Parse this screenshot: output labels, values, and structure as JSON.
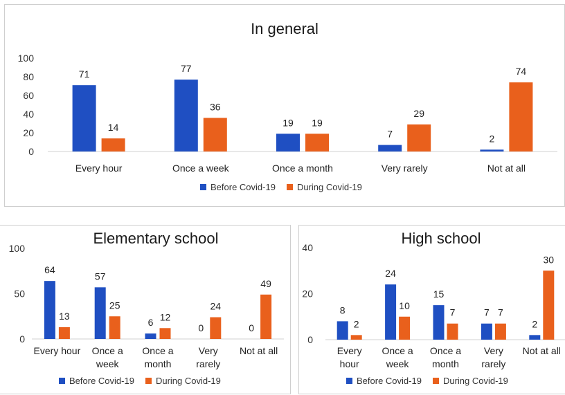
{
  "colors": {
    "before": "#1f4fc2",
    "during": "#e9601c",
    "axis": "#d0d0d0",
    "text": "#333333"
  },
  "chart_data": [
    {
      "type": "bar",
      "title": "In general",
      "categories": [
        "Every hour",
        "Once a week",
        "Once a month",
        "Very rarely",
        "Not at all"
      ],
      "series": [
        {
          "name": "Before Covid-19",
          "values": [
            71,
            77,
            19,
            7,
            2
          ]
        },
        {
          "name": "During Covid-19",
          "values": [
            14,
            36,
            19,
            29,
            74
          ]
        }
      ],
      "ylim": [
        0,
        100
      ],
      "yticks": [
        "0",
        "20",
        "40",
        "60",
        "80",
        "100"
      ],
      "legend": "bottom",
      "grid": false
    },
    {
      "type": "bar",
      "title": "Elementary school",
      "categories": [
        [
          "Every hour"
        ],
        [
          "Once a",
          "week"
        ],
        [
          "Once a",
          "month"
        ],
        [
          "Very",
          "rarely"
        ],
        [
          "Not at all"
        ]
      ],
      "series": [
        {
          "name": "Before Covid-19",
          "values": [
            64,
            57,
            6,
            0,
            0
          ]
        },
        {
          "name": "During Covid-19",
          "values": [
            13,
            25,
            12,
            24,
            49
          ]
        }
      ],
      "ylim": [
        0,
        100
      ],
      "yticks": [
        "0",
        "50",
        "100"
      ],
      "legend": "bottom",
      "grid": false
    },
    {
      "type": "bar",
      "title": "High school",
      "categories": [
        [
          "Every",
          "hour"
        ],
        [
          "Once a",
          "week"
        ],
        [
          "Once a",
          "month"
        ],
        [
          "Very",
          "rarely"
        ],
        [
          "Not at all"
        ]
      ],
      "series": [
        {
          "name": "Before Covid-19",
          "values": [
            8,
            24,
            15,
            7,
            2
          ]
        },
        {
          "name": "During Covid-19",
          "values": [
            2,
            10,
            7,
            7,
            30
          ]
        }
      ],
      "ylim": [
        0,
        40
      ],
      "yticks": [
        "0",
        "20",
        "40"
      ],
      "legend": "bottom",
      "grid": false
    }
  ]
}
